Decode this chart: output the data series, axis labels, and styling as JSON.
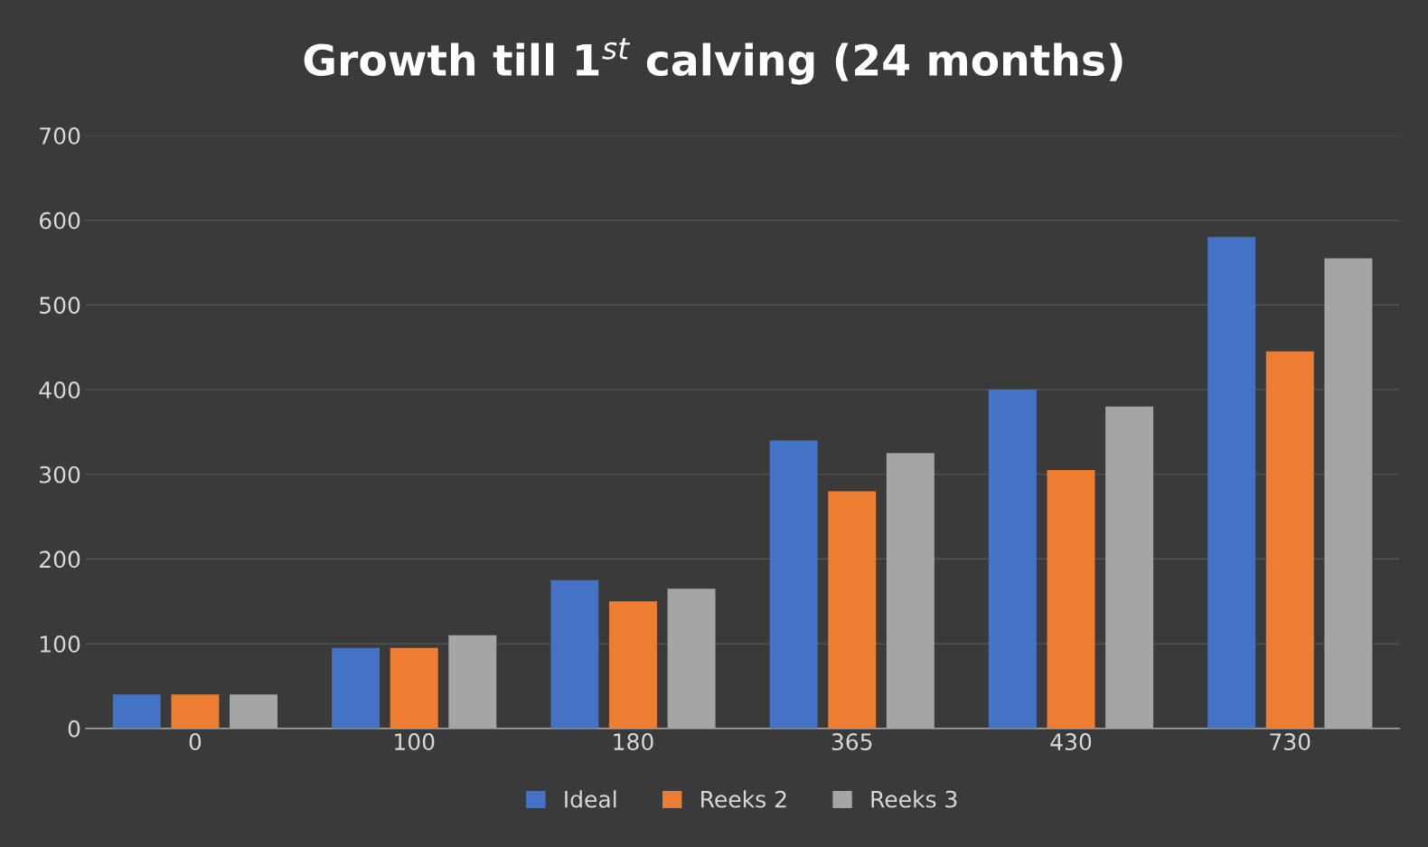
{
  "chart_data": {
    "type": "bar",
    "title": "Growth till 1$^{st}$ calving (24 months)",
    "categories": [
      "0",
      "100",
      "180",
      "365",
      "430",
      "730"
    ],
    "series": [
      {
        "name": "Ideal",
        "color": "#4472c4",
        "values": [
          40,
          95,
          175,
          340,
          400,
          580
        ]
      },
      {
        "name": "Reeks 2",
        "color": "#ed7d31",
        "values": [
          40,
          95,
          150,
          280,
          305,
          445
        ]
      },
      {
        "name": "Reeks 3",
        "color": "#a5a5a5",
        "values": [
          40,
          110,
          165,
          325,
          380,
          555
        ]
      }
    ],
    "ylim": [
      0,
      700
    ],
    "yticks": [
      0,
      100,
      200,
      300,
      400,
      500,
      600,
      700
    ],
    "grid": "y",
    "legend": "bottom"
  }
}
